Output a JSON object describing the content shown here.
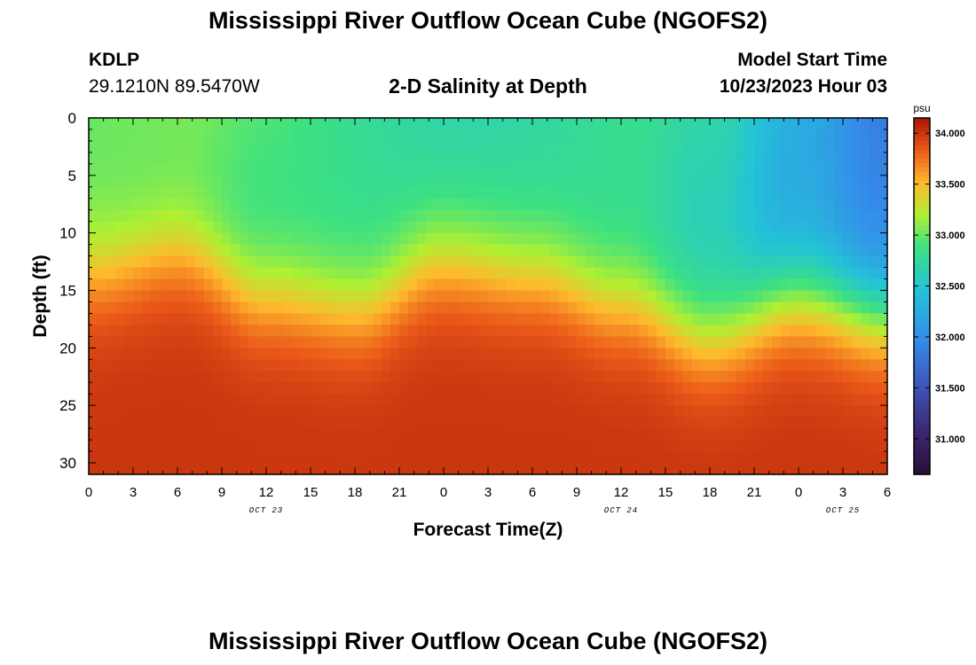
{
  "page": {
    "title": "Mississippi River Outflow Ocean Cube (NGOFS2)",
    "title_repeat": "Mississippi River Outflow Ocean Cube (NGOFS2)",
    "station_id": "KDLP",
    "station_coords": "29.1210N  89.5470W",
    "subtitle": "2-D Salinity at Depth",
    "model_start_label": "Model Start Time",
    "model_start_value": "10/23/2023 Hour 03"
  },
  "chart_data": {
    "type": "heatmap",
    "title": "2-D Salinity at Depth",
    "xlabel": "Forecast Time(Z)",
    "ylabel": "Depth (ft)",
    "x_tick_labels": [
      "0",
      "3",
      "6",
      "9",
      "12",
      "15",
      "18",
      "21",
      "0",
      "3",
      "6",
      "9",
      "12",
      "15",
      "18",
      "21",
      "0",
      "3",
      "6"
    ],
    "x_hours": [
      0,
      3,
      6,
      9,
      12,
      15,
      18,
      21,
      24,
      27,
      30,
      33,
      36,
      39,
      42,
      45,
      48,
      51,
      54
    ],
    "xlim": [
      0,
      54
    ],
    "date_labels": [
      {
        "text": "OCT 23",
        "hour": 12
      },
      {
        "text": "OCT 24",
        "hour": 36
      },
      {
        "text": "OCT 25",
        "hour": 51
      }
    ],
    "y_ticks": [
      0,
      5,
      10,
      15,
      20,
      25,
      30
    ],
    "ylim": [
      0,
      31
    ],
    "y_inverted": true,
    "colorbar": {
      "unit": "psu",
      "ticks": [
        "31.000",
        "31.500",
        "32.000",
        "32.500",
        "33.000",
        "33.500",
        "34.000"
      ],
      "tick_values": [
        31.0,
        31.5,
        32.0,
        32.5,
        33.0,
        33.5,
        34.0
      ],
      "range": [
        30.65,
        34.15
      ]
    },
    "surface_salinity": [
      {
        "hour": 0,
        "value": 33.0
      },
      {
        "hour": 6,
        "value": 32.95
      },
      {
        "hour": 12,
        "value": 32.85
      },
      {
        "hour": 24,
        "value": 32.8
      },
      {
        "hour": 36,
        "value": 32.8
      },
      {
        "hour": 42,
        "value": 32.6
      },
      {
        "hour": 48,
        "value": 32.2
      },
      {
        "hour": 54,
        "value": 31.9
      }
    ],
    "halocline_depth_ft": [
      {
        "hour": 0,
        "depth": 13.5
      },
      {
        "hour": 6,
        "depth": 11.5
      },
      {
        "hour": 12,
        "depth": 15.5
      },
      {
        "hour": 18,
        "depth": 16.5
      },
      {
        "hour": 24,
        "depth": 12.5
      },
      {
        "hour": 30,
        "depth": 13.5
      },
      {
        "hour": 36,
        "depth": 16.0
      },
      {
        "hour": 42,
        "depth": 19.0
      },
      {
        "hour": 48,
        "depth": 15.5
      },
      {
        "hour": 54,
        "depth": 17.0
      }
    ],
    "bottom_salinity": 34.0
  }
}
